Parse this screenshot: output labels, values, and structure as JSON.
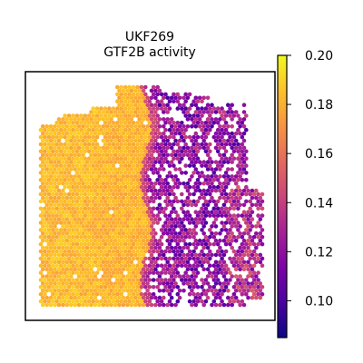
{
  "chart_data": {
    "type": "heatmap",
    "title_lines": [
      "UKF269",
      "GTF2B activity"
    ],
    "xlabel": "",
    "ylabel": "",
    "grid": false,
    "colormap": "plasma",
    "color_range": [
      0.085,
      0.2
    ],
    "colorbar_ticks": [
      0.1,
      0.12,
      0.14,
      0.16,
      0.18,
      0.2
    ],
    "colorbar_tick_labels": [
      "0.10",
      "0.12",
      "0.14",
      "0.16",
      "0.18",
      "0.20"
    ],
    "spot_grid_size": [
      56,
      62
    ],
    "regions": [
      {
        "name": "left tissue region",
        "value_range": [
          0.165,
          0.19
        ],
        "density": "dense"
      },
      {
        "name": "right tissue region",
        "value_range": [
          0.1,
          0.14
        ],
        "density": "sparse with gaps"
      }
    ]
  }
}
